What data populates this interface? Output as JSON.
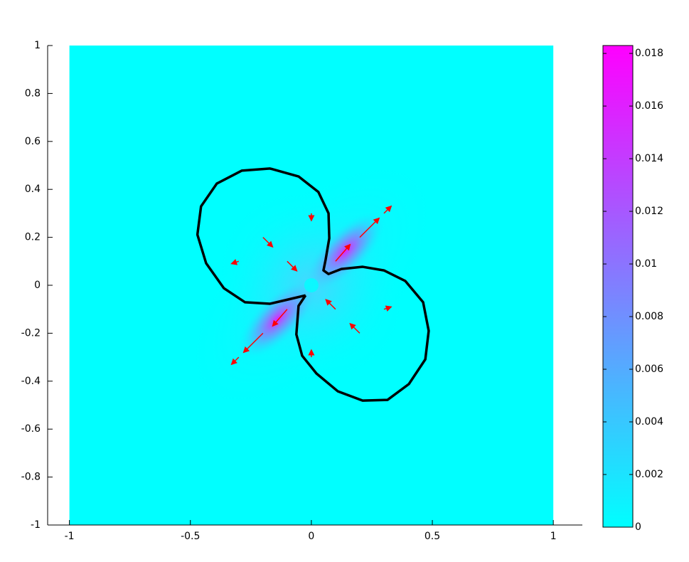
{
  "chart_data": {
    "type": "quiver",
    "xlim": [
      -1.09,
      1.12
    ],
    "ylim": [
      -1,
      1
    ],
    "xticks": [
      -1,
      -0.5,
      0,
      0.5,
      1
    ],
    "yticks": [
      -1,
      -0.8,
      -0.6,
      -0.4,
      -0.2,
      0,
      0.2,
      0.4,
      0.6,
      0.8,
      1
    ],
    "colorbar": {
      "colormap": [
        "#00ffff",
        "#ff00ff"
      ],
      "lim": [
        0,
        0.0183
      ],
      "ticks": [
        0,
        0.002,
        0.004,
        0.006,
        0.008,
        0.01,
        0.012,
        0.014,
        0.016,
        0.018
      ]
    },
    "arrows": {
      "color": "#ff0000",
      "x": [
        0.2,
        0.1,
        -0.1,
        -0.2,
        -0.2,
        -0.1,
        0.1,
        0.2,
        0.3,
        -0.3,
        0.3,
        -0.3,
        0,
        0
      ],
      "y": [
        0.2,
        0.1,
        -0.1,
        -0.2,
        0.2,
        0.1,
        -0.1,
        -0.2,
        0.3,
        -0.3,
        -0.1,
        0.1,
        -0.3,
        0.3
      ],
      "u": [
        0.08,
        0.06,
        -0.06,
        -0.08,
        0.04,
        0.04,
        -0.04,
        -0.04,
        0.03,
        -0.03,
        0.03,
        -0.03,
        0,
        0
      ],
      "v": [
        0.08,
        0.07,
        -0.07,
        -0.08,
        -0.04,
        -0.04,
        0.04,
        0.04,
        0.03,
        -0.03,
        0.01,
        -0.01,
        0.03,
        -0.03
      ]
    },
    "contour": {
      "color": "#000000",
      "x": [
        -0.024,
        -0.053,
        -0.062,
        -0.038,
        0.021,
        0.109,
        0.212,
        0.315,
        0.403,
        0.471,
        0.485,
        0.462,
        0.388,
        0.3,
        0.212,
        0.124,
        0.071,
        0.05,
        0.059,
        0.074,
        0.071,
        0.029,
        -0.053,
        -0.171,
        -0.288,
        -0.391,
        -0.456,
        -0.471,
        -0.435,
        -0.362,
        -0.274,
        -0.171,
        -0.082,
        -0.024
      ],
      "y": [
        -0.042,
        -0.086,
        -0.205,
        -0.294,
        -0.368,
        -0.442,
        -0.481,
        -0.478,
        -0.412,
        -0.309,
        -0.19,
        -0.071,
        0.018,
        0.062,
        0.077,
        0.068,
        0.047,
        0.062,
        0.107,
        0.196,
        0.3,
        0.389,
        0.454,
        0.487,
        0.478,
        0.424,
        0.329,
        0.211,
        0.092,
        -0.012,
        -0.071,
        -0.077,
        -0.056,
        -0.042
      ]
    }
  }
}
